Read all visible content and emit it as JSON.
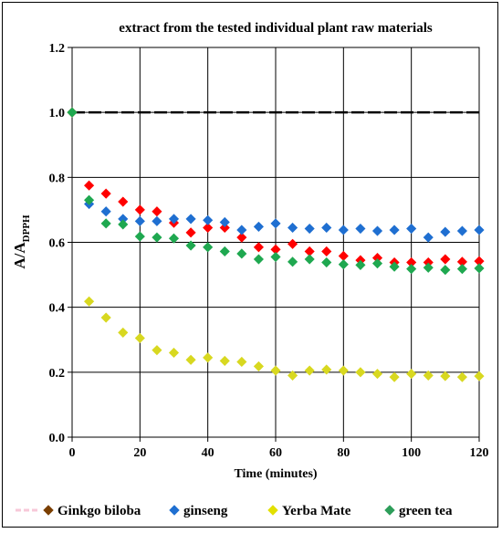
{
  "chart_data": {
    "type": "scatter",
    "title": "extract from the tested individual plant raw materials",
    "xlabel": "Time (minutes)",
    "ylabel": {
      "main": "A/A",
      "sub": "DPPH"
    },
    "xlim": [
      0,
      120
    ],
    "ylim": [
      0.0,
      1.2
    ],
    "x_ticks": [
      "0",
      "20",
      "40",
      "60",
      "80",
      "100",
      "120"
    ],
    "y_ticks": [
      "0.0",
      "0.2",
      "0.4",
      "0.6",
      "0.8",
      "1.0",
      "1.2"
    ],
    "reference_line": {
      "y": 1.0,
      "style": "dashed"
    },
    "grid": true,
    "legend_position": "bottom",
    "x": [
      0,
      5,
      10,
      15,
      20,
      25,
      30,
      35,
      40,
      45,
      50,
      55,
      60,
      65,
      70,
      75,
      80,
      85,
      90,
      95,
      100,
      105,
      110,
      115,
      120
    ],
    "series": [
      {
        "name": "Ginkgo biloba",
        "legend_color": "#7b3f00",
        "color": "#ff0000",
        "values": [
          1.0,
          0.775,
          0.75,
          0.725,
          0.7,
          0.695,
          0.66,
          0.63,
          0.645,
          0.645,
          0.615,
          0.585,
          0.578,
          0.595,
          0.572,
          0.572,
          0.558,
          0.545,
          0.552,
          0.538,
          0.538,
          0.538,
          0.548,
          0.54,
          0.542
        ]
      },
      {
        "name": "ginseng",
        "legend_color": "#1f6fd1",
        "color": "#1f6fd1",
        "values": [
          1.0,
          0.718,
          0.695,
          0.672,
          0.665,
          0.665,
          0.672,
          0.672,
          0.668,
          0.662,
          0.638,
          0.648,
          0.658,
          0.645,
          0.642,
          0.645,
          0.638,
          0.642,
          0.635,
          0.638,
          0.642,
          0.615,
          0.632,
          0.635,
          0.638
        ]
      },
      {
        "name": "Yerba Mate",
        "legend_color": "#e2e000",
        "color": "#d8d820",
        "values": [
          1.0,
          0.418,
          0.368,
          0.322,
          0.305,
          0.268,
          0.26,
          0.238,
          0.245,
          0.235,
          0.232,
          0.218,
          0.205,
          0.19,
          0.205,
          0.208,
          0.205,
          0.2,
          0.195,
          0.185,
          0.195,
          0.19,
          0.188,
          0.185,
          0.188
        ]
      },
      {
        "name": "green tea",
        "legend_color": "#2e9e5a",
        "color": "#1fa850",
        "values": [
          1.0,
          0.73,
          0.658,
          0.655,
          0.618,
          0.615,
          0.612,
          0.59,
          0.585,
          0.572,
          0.565,
          0.548,
          0.555,
          0.54,
          0.548,
          0.538,
          0.532,
          0.53,
          0.535,
          0.525,
          0.518,
          0.522,
          0.515,
          0.518,
          0.52
        ]
      }
    ]
  }
}
